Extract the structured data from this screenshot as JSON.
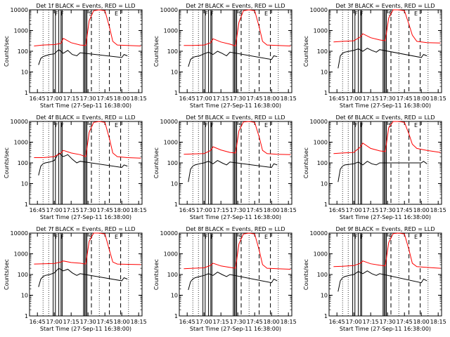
{
  "figure": {
    "ylabel": "Counts/sec",
    "xlabel": "Start Time (27-Sep-11 16:38:00)",
    "x_ticks": [
      "16:45",
      "17:00",
      "17:15",
      "17:30",
      "17:45",
      "18:00",
      "18:15"
    ],
    "y_ticks": [
      "1",
      "10",
      "100",
      "1000",
      "10000"
    ],
    "markers": [
      "F",
      "F",
      "S",
      "E"
    ],
    "colors": {
      "events": "#000000",
      "lld": "#ff0000"
    }
  },
  "chart_data": [
    {
      "type": "line",
      "title": "Det 1f BLACK = Events, RED = LLD",
      "xlabel": "Start Time (27-Sep-11 16:38:00)",
      "ylabel": "Counts/sec",
      "xlim": [
        "16:38",
        "18:18"
      ],
      "ylim": [
        1,
        10000
      ],
      "yscale": "log",
      "series": [
        {
          "name": "Events",
          "color": "#000000",
          "x": [
            "16:46",
            "16:48",
            "16:50",
            "16:52",
            "16:56",
            "17:00",
            "17:04",
            "17:08",
            "17:12",
            "17:16",
            "17:20",
            "17:23",
            "18:00",
            "18:02",
            "18:05"
          ],
          "values": [
            22,
            45,
            55,
            60,
            70,
            75,
            120,
            80,
            110,
            70,
            60,
            85,
            50,
            70,
            60
          ]
        },
        {
          "name": "LLD",
          "color": "#ff0000",
          "x": [
            "16:42",
            "16:50",
            "17:00",
            "17:06",
            "17:08",
            "17:15",
            "17:23",
            "17:28",
            "17:31",
            "17:35",
            "17:40",
            "17:45",
            "17:49",
            "17:52",
            "17:56",
            "18:05",
            "18:17"
          ],
          "values": [
            180,
            200,
            210,
            240,
            420,
            260,
            200,
            190,
            3000,
            9000,
            10000,
            9000,
            1500,
            300,
            200,
            190,
            180
          ]
        }
      ],
      "markers": [
        "F",
        "F",
        "S",
        "E"
      ]
    },
    {
      "type": "line",
      "title": "Det 2f BLACK = Events, RED = LLD",
      "xlabel": "Start Time (27-Sep-11 16:38:00)",
      "ylabel": "Counts/sec",
      "xlim": [
        "16:38",
        "18:18"
      ],
      "ylim": [
        1,
        10000
      ],
      "yscale": "log",
      "series": [
        {
          "name": "Events",
          "color": "#000000",
          "x": [
            "16:46",
            "16:48",
            "16:50",
            "16:52",
            "16:56",
            "17:00",
            "17:04",
            "17:08",
            "17:12",
            "17:16",
            "17:20",
            "17:23",
            "18:00",
            "18:02",
            "18:05"
          ],
          "values": [
            18,
            40,
            50,
            55,
            60,
            75,
            90,
            70,
            100,
            80,
            60,
            90,
            40,
            60,
            55
          ]
        },
        {
          "name": "LLD",
          "color": "#ff0000",
          "x": [
            "16:42",
            "16:50",
            "17:00",
            "17:06",
            "17:08",
            "17:15",
            "17:23",
            "17:28",
            "17:31",
            "17:35",
            "17:40",
            "17:45",
            "17:49",
            "17:52",
            "17:56",
            "18:05",
            "18:17"
          ],
          "values": [
            190,
            190,
            200,
            260,
            400,
            280,
            220,
            180,
            2500,
            9000,
            10000,
            9000,
            1500,
            300,
            200,
            190,
            180
          ]
        }
      ],
      "markers": [
        "F",
        "F",
        "S",
        "E"
      ]
    },
    {
      "type": "line",
      "title": "Det 3f BLACK = Events, RED = LLD",
      "xlabel": "Start Time (27-Sep-11 16:38:00)",
      "ylabel": "Counts/sec",
      "xlim": [
        "16:38",
        "18:18"
      ],
      "ylim": [
        1,
        10000
      ],
      "yscale": "log",
      "series": [
        {
          "name": "Events",
          "color": "#000000",
          "x": [
            "16:46",
            "16:48",
            "16:50",
            "16:52",
            "16:56",
            "17:00",
            "17:04",
            "17:08",
            "17:12",
            "17:16",
            "17:20",
            "17:23",
            "18:00",
            "18:02",
            "18:05"
          ],
          "values": [
            15,
            60,
            80,
            90,
            100,
            110,
            130,
            100,
            140,
            110,
            90,
            120,
            50,
            70,
            60
          ]
        },
        {
          "name": "LLD",
          "color": "#ff0000",
          "x": [
            "16:42",
            "16:50",
            "17:00",
            "17:06",
            "17:08",
            "17:15",
            "17:23",
            "17:28",
            "17:31",
            "17:35",
            "17:40",
            "17:45",
            "17:49",
            "17:52",
            "17:56",
            "18:05",
            "18:17"
          ],
          "values": [
            280,
            300,
            320,
            500,
            700,
            450,
            350,
            320,
            4000,
            10000,
            10000,
            9000,
            2000,
            600,
            300,
            260,
            250
          ]
        }
      ],
      "markers": [
        "F",
        "F",
        "S",
        "E"
      ]
    },
    {
      "type": "line",
      "title": "Det 4f BLACK = Events, RED = LLD",
      "xlabel": "Start Time (27-Sep-11 16:38:00)",
      "ylabel": "Counts/sec",
      "xlim": [
        "16:38",
        "18:18"
      ],
      "ylim": [
        1,
        10000
      ],
      "yscale": "log",
      "series": [
        {
          "name": "Events",
          "color": "#000000",
          "x": [
            "16:46",
            "16:48",
            "16:50",
            "16:52",
            "16:56",
            "17:00",
            "17:04",
            "17:08",
            "17:12",
            "17:16",
            "17:20",
            "17:23",
            "18:00",
            "18:02",
            "18:05"
          ],
          "values": [
            25,
            70,
            90,
            100,
            110,
            130,
            300,
            200,
            250,
            150,
            100,
            120,
            60,
            80,
            70
          ]
        },
        {
          "name": "LLD",
          "color": "#ff0000",
          "x": [
            "16:42",
            "16:50",
            "17:00",
            "17:06",
            "17:08",
            "17:15",
            "17:23",
            "17:28",
            "17:31",
            "17:35",
            "17:40",
            "17:45",
            "17:49",
            "17:52",
            "17:56",
            "18:05",
            "18:17"
          ],
          "values": [
            180,
            180,
            200,
            300,
            400,
            300,
            250,
            200,
            3000,
            9000,
            10000,
            9000,
            1500,
            300,
            200,
            180,
            170
          ]
        }
      ],
      "markers": [
        "F",
        "F",
        "S",
        "E"
      ]
    },
    {
      "type": "line",
      "title": "Det 5f BLACK = Events, RED = LLD",
      "xlabel": "Start Time (27-Sep-11 16:38:00)",
      "ylabel": "Counts/sec",
      "xlim": [
        "16:38",
        "18:18"
      ],
      "ylim": [
        1,
        10000
      ],
      "yscale": "log",
      "series": [
        {
          "name": "Events",
          "color": "#000000",
          "x": [
            "16:46",
            "16:48",
            "16:50",
            "16:52",
            "16:56",
            "17:00",
            "17:04",
            "17:08",
            "17:12",
            "17:16",
            "17:20",
            "17:23",
            "18:00",
            "18:02",
            "18:05"
          ],
          "values": [
            12,
            50,
            70,
            80,
            90,
            100,
            120,
            90,
            130,
            100,
            80,
            110,
            60,
            90,
            80
          ]
        },
        {
          "name": "LLD",
          "color": "#ff0000",
          "x": [
            "16:42",
            "16:50",
            "17:00",
            "17:06",
            "17:08",
            "17:15",
            "17:23",
            "17:28",
            "17:31",
            "17:35",
            "17:40",
            "17:45",
            "17:49",
            "17:52",
            "17:56",
            "18:05",
            "18:17"
          ],
          "values": [
            260,
            270,
            280,
            400,
            600,
            420,
            320,
            300,
            3500,
            9500,
            10000,
            9000,
            1800,
            400,
            280,
            260,
            250
          ]
        }
      ],
      "markers": [
        "F",
        "F",
        "S",
        "E"
      ]
    },
    {
      "type": "line",
      "title": "Det 6f BLACK = Events, RED = LLD",
      "xlabel": "Start Time (27-Sep-11 16:38:00)",
      "ylabel": "Counts/sec",
      "xlim": [
        "16:38",
        "18:18"
      ],
      "ylim": [
        1,
        10000
      ],
      "yscale": "log",
      "series": [
        {
          "name": "Events",
          "color": "#000000",
          "x": [
            "16:46",
            "16:48",
            "16:50",
            "16:52",
            "16:56",
            "17:00",
            "17:04",
            "17:08",
            "17:12",
            "17:16",
            "17:20",
            "17:23",
            "18:00",
            "18:02",
            "18:05"
          ],
          "values": [
            12,
            50,
            70,
            80,
            85,
            90,
            110,
            80,
            120,
            90,
            80,
            100,
            100,
            120,
            90
          ]
        },
        {
          "name": "LLD",
          "color": "#ff0000",
          "x": [
            "16:42",
            "16:50",
            "17:00",
            "17:06",
            "17:08",
            "17:15",
            "17:23",
            "17:28",
            "17:31",
            "17:35",
            "17:40",
            "17:45",
            "17:49",
            "17:52",
            "17:56",
            "18:05",
            "18:17"
          ],
          "values": [
            280,
            300,
            320,
            600,
            900,
            500,
            380,
            350,
            5000,
            10000,
            10000,
            9000,
            2500,
            800,
            500,
            400,
            320
          ]
        }
      ],
      "markers": [
        "F",
        "F",
        "S",
        "E"
      ]
    },
    {
      "type": "line",
      "title": "Det 7f BLACK = Events, RED = LLD",
      "xlabel": "Start Time (27-Sep-11 16:38:00)",
      "ylabel": "Counts/sec",
      "xlim": [
        "16:38",
        "18:18"
      ],
      "ylim": [
        1,
        10000
      ],
      "yscale": "log",
      "series": [
        {
          "name": "Events",
          "color": "#000000",
          "x": [
            "16:46",
            "16:48",
            "16:50",
            "16:52",
            "16:56",
            "17:00",
            "17:04",
            "17:08",
            "17:12",
            "17:16",
            "17:20",
            "17:23",
            "18:00",
            "18:02",
            "18:05"
          ],
          "values": [
            25,
            60,
            80,
            90,
            100,
            120,
            200,
            150,
            180,
            120,
            90,
            110,
            50,
            70,
            60
          ]
        },
        {
          "name": "LLD",
          "color": "#ff0000",
          "x": [
            "16:42",
            "16:50",
            "17:00",
            "17:06",
            "17:08",
            "17:15",
            "17:23",
            "17:28",
            "17:31",
            "17:35",
            "17:40",
            "17:45",
            "17:49",
            "17:52",
            "17:56",
            "18:05",
            "18:17"
          ],
          "values": [
            320,
            330,
            340,
            400,
            450,
            380,
            350,
            320,
            4000,
            10000,
            10000,
            9000,
            1500,
            400,
            320,
            310,
            300
          ]
        }
      ],
      "markers": [
        "F",
        "F",
        "S",
        "E"
      ]
    },
    {
      "type": "line",
      "title": "Det 8f BLACK = Events, RED = LLD",
      "xlabel": "Start Time (27-Sep-11 16:38:00)",
      "ylabel": "Counts/sec",
      "xlim": [
        "16:38",
        "18:18"
      ],
      "ylim": [
        1,
        10000
      ],
      "yscale": "log",
      "series": [
        {
          "name": "Events",
          "color": "#000000",
          "x": [
            "16:46",
            "16:48",
            "16:50",
            "16:52",
            "16:56",
            "17:00",
            "17:04",
            "17:08",
            "17:12",
            "17:16",
            "17:20",
            "17:23",
            "18:00",
            "18:02",
            "18:05"
          ],
          "values": [
            18,
            45,
            60,
            70,
            80,
            90,
            110,
            90,
            130,
            100,
            80,
            100,
            40,
            60,
            50
          ]
        },
        {
          "name": "LLD",
          "color": "#ff0000",
          "x": [
            "16:42",
            "16:50",
            "17:00",
            "17:06",
            "17:08",
            "17:15",
            "17:23",
            "17:28",
            "17:31",
            "17:35",
            "17:40",
            "17:45",
            "17:49",
            "17:52",
            "17:56",
            "18:05",
            "18:17"
          ],
          "values": [
            190,
            200,
            210,
            280,
            350,
            260,
            220,
            200,
            3000,
            9000,
            10000,
            9000,
            1500,
            300,
            200,
            190,
            180
          ]
        }
      ],
      "markers": [
        "F",
        "F",
        "S",
        "E"
      ]
    },
    {
      "type": "line",
      "title": "Det 9f BLACK = Events, RED = LLD",
      "xlabel": "Start Time (27-Sep-11 16:38:00)",
      "ylabel": "Counts/sec",
      "xlim": [
        "16:38",
        "18:18"
      ],
      "ylim": [
        1,
        10000
      ],
      "yscale": "log",
      "series": [
        {
          "name": "Events",
          "color": "#000000",
          "x": [
            "16:46",
            "16:48",
            "16:50",
            "16:52",
            "16:56",
            "17:00",
            "17:04",
            "17:08",
            "17:12",
            "17:16",
            "17:20",
            "17:23",
            "18:00",
            "18:02",
            "18:05"
          ],
          "values": [
            15,
            50,
            70,
            80,
            90,
            100,
            140,
            110,
            150,
            110,
            90,
            110,
            40,
            60,
            50
          ]
        },
        {
          "name": "LLD",
          "color": "#ff0000",
          "x": [
            "16:42",
            "16:50",
            "17:00",
            "17:06",
            "17:08",
            "17:15",
            "17:23",
            "17:28",
            "17:31",
            "17:35",
            "17:40",
            "17:45",
            "17:49",
            "17:52",
            "17:56",
            "18:05",
            "18:17"
          ],
          "values": [
            240,
            250,
            270,
            350,
            450,
            330,
            280,
            260,
            3500,
            9500,
            10000,
            9000,
            1600,
            350,
            240,
            220,
            200
          ]
        }
      ],
      "markers": [
        "F",
        "F",
        "S",
        "E"
      ]
    }
  ]
}
